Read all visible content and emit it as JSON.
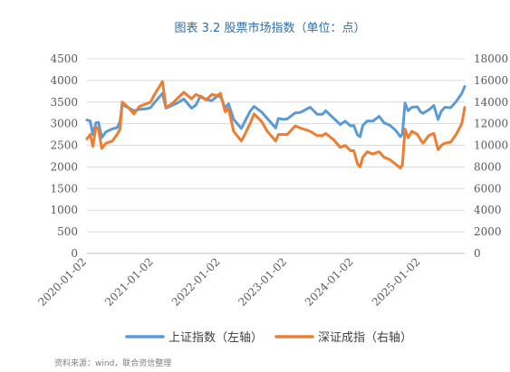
{
  "chart_data": {
    "type": "line",
    "title": "图表 3.2    股票市场指数（单位：点）",
    "x_tick_labels": [
      "2020-01-02",
      "2021-01-02",
      "2022-01-02",
      "2023-01-02",
      "2024-01-02",
      "2025-01-02"
    ],
    "x_range": [
      "2020-01-02",
      "2025-08-31"
    ],
    "left_axis": {
      "ticks": [
        "0",
        "500",
        "1000",
        "1500",
        "2000",
        "2500",
        "3000",
        "3500",
        "4000",
        "4500"
      ],
      "ylim": [
        0,
        4500
      ]
    },
    "right_axis": {
      "ticks": [
        "0",
        "2000",
        "4000",
        "6000",
        "8000",
        "10000",
        "12000",
        "14000",
        "16000",
        "18000"
      ],
      "ylim": [
        0,
        18000
      ]
    },
    "grid": true,
    "legend_position": "bottom",
    "series": [
      {
        "name": "上证指数（左轴）",
        "axis": "left",
        "color": "#5b9bd5",
        "points": [
          [
            "2020-01-02",
            3085
          ],
          [
            "2020-01-20",
            3060
          ],
          [
            "2020-02-03",
            2750
          ],
          [
            "2020-02-20",
            3020
          ],
          [
            "2020-03-05",
            3030
          ],
          [
            "2020-03-23",
            2680
          ],
          [
            "2020-04-15",
            2810
          ],
          [
            "2020-05-20",
            2880
          ],
          [
            "2020-06-15",
            2910
          ],
          [
            "2020-07-01",
            3050
          ],
          [
            "2020-07-13",
            3440
          ],
          [
            "2020-08-15",
            3370
          ],
          [
            "2020-09-15",
            3300
          ],
          [
            "2020-10-15",
            3330
          ],
          [
            "2020-11-15",
            3340
          ],
          [
            "2020-12-15",
            3370
          ],
          [
            "2021-01-02",
            3470
          ],
          [
            "2021-02-18",
            3700
          ],
          [
            "2021-03-10",
            3360
          ],
          [
            "2021-04-15",
            3430
          ],
          [
            "2021-05-15",
            3490
          ],
          [
            "2021-06-15",
            3570
          ],
          [
            "2021-07-28",
            3360
          ],
          [
            "2021-08-20",
            3430
          ],
          [
            "2021-09-15",
            3640
          ],
          [
            "2021-10-15",
            3560
          ],
          [
            "2021-11-15",
            3530
          ],
          [
            "2021-12-15",
            3640
          ],
          [
            "2022-01-02",
            3630
          ],
          [
            "2022-01-28",
            3360
          ],
          [
            "2022-02-15",
            3460
          ],
          [
            "2022-03-15",
            3100
          ],
          [
            "2022-04-26",
            2890
          ],
          [
            "2022-05-15",
            3050
          ],
          [
            "2022-06-15",
            3300
          ],
          [
            "2022-07-05",
            3400
          ],
          [
            "2022-08-15",
            3270
          ],
          [
            "2022-09-15",
            3120
          ],
          [
            "2022-10-31",
            2900
          ],
          [
            "2022-11-15",
            3120
          ],
          [
            "2022-12-15",
            3100
          ],
          [
            "2023-01-02",
            3110
          ],
          [
            "2023-02-15",
            3250
          ],
          [
            "2023-03-15",
            3260
          ],
          [
            "2023-05-08",
            3380
          ],
          [
            "2023-06-15",
            3220
          ],
          [
            "2023-07-15",
            3220
          ],
          [
            "2023-08-01",
            3300
          ],
          [
            "2023-09-15",
            3120
          ],
          [
            "2023-10-20",
            2980
          ],
          [
            "2023-11-15",
            3060
          ],
          [
            "2023-12-15",
            2950
          ],
          [
            "2024-01-02",
            2960
          ],
          [
            "2024-01-22",
            2740
          ],
          [
            "2024-02-05",
            2700
          ],
          [
            "2024-02-20",
            2960
          ],
          [
            "2024-03-15",
            3060
          ],
          [
            "2024-04-15",
            3060
          ],
          [
            "2024-05-20",
            3170
          ],
          [
            "2024-06-15",
            3020
          ],
          [
            "2024-07-15",
            2970
          ],
          [
            "2024-08-15",
            2860
          ],
          [
            "2024-09-13",
            2700
          ],
          [
            "2024-09-24",
            2760
          ],
          [
            "2024-10-08",
            3480
          ],
          [
            "2024-10-25",
            3300
          ],
          [
            "2024-11-15",
            3380
          ],
          [
            "2024-12-15",
            3390
          ],
          [
            "2025-01-02",
            3270
          ],
          [
            "2025-01-15",
            3240
          ],
          [
            "2025-02-15",
            3320
          ],
          [
            "2025-03-15",
            3420
          ],
          [
            "2025-04-07",
            3100
          ],
          [
            "2025-04-25",
            3290
          ],
          [
            "2025-05-15",
            3380
          ],
          [
            "2025-06-15",
            3370
          ],
          [
            "2025-07-15",
            3510
          ],
          [
            "2025-08-15",
            3700
          ],
          [
            "2025-08-31",
            3860
          ]
        ]
      },
      {
        "name": "深证成指（右轴）",
        "axis": "right",
        "color": "#ed7d31",
        "points": [
          [
            "2020-01-02",
            10600
          ],
          [
            "2020-01-20",
            11000
          ],
          [
            "2020-02-03",
            9900
          ],
          [
            "2020-02-20",
            11700
          ],
          [
            "2020-03-05",
            11500
          ],
          [
            "2020-03-23",
            9700
          ],
          [
            "2020-04-15",
            10200
          ],
          [
            "2020-05-20",
            10400
          ],
          [
            "2020-06-15",
            11000
          ],
          [
            "2020-07-01",
            11500
          ],
          [
            "2020-07-13",
            14000
          ],
          [
            "2020-08-15",
            13500
          ],
          [
            "2020-09-15",
            12900
          ],
          [
            "2020-10-15",
            13600
          ],
          [
            "2020-11-15",
            13800
          ],
          [
            "2020-12-15",
            14000
          ],
          [
            "2021-01-02",
            14600
          ],
          [
            "2021-02-18",
            15900
          ],
          [
            "2021-03-10",
            13500
          ],
          [
            "2021-04-15",
            13900
          ],
          [
            "2021-05-15",
            14400
          ],
          [
            "2021-06-15",
            14900
          ],
          [
            "2021-07-28",
            14300
          ],
          [
            "2021-08-20",
            14700
          ],
          [
            "2021-09-15",
            14500
          ],
          [
            "2021-10-15",
            14200
          ],
          [
            "2021-11-15",
            14700
          ],
          [
            "2021-12-15",
            14600
          ],
          [
            "2022-01-02",
            14800
          ],
          [
            "2022-01-28",
            13100
          ],
          [
            "2022-02-15",
            13400
          ],
          [
            "2022-03-15",
            11300
          ],
          [
            "2022-04-26",
            10400
          ],
          [
            "2022-05-15",
            11000
          ],
          [
            "2022-06-15",
            12100
          ],
          [
            "2022-07-05",
            12900
          ],
          [
            "2022-08-15",
            12200
          ],
          [
            "2022-09-15",
            11300
          ],
          [
            "2022-10-31",
            10400
          ],
          [
            "2022-11-15",
            11000
          ],
          [
            "2022-12-15",
            11000
          ],
          [
            "2023-01-02",
            11000
          ],
          [
            "2023-02-15",
            11800
          ],
          [
            "2023-03-15",
            11600
          ],
          [
            "2023-05-08",
            11300
          ],
          [
            "2023-06-15",
            10900
          ],
          [
            "2023-07-15",
            10900
          ],
          [
            "2023-08-01",
            11100
          ],
          [
            "2023-09-15",
            10500
          ],
          [
            "2023-10-20",
            9800
          ],
          [
            "2023-11-15",
            10000
          ],
          [
            "2023-12-15",
            9500
          ],
          [
            "2024-01-02",
            9500
          ],
          [
            "2024-01-22",
            8300
          ],
          [
            "2024-02-05",
            8000
          ],
          [
            "2024-02-20",
            8900
          ],
          [
            "2024-03-15",
            9400
          ],
          [
            "2024-04-15",
            9200
          ],
          [
            "2024-05-20",
            9400
          ],
          [
            "2024-06-15",
            8900
          ],
          [
            "2024-07-15",
            8700
          ],
          [
            "2024-08-15",
            8300
          ],
          [
            "2024-09-13",
            7900
          ],
          [
            "2024-09-24",
            8200
          ],
          [
            "2024-10-08",
            11500
          ],
          [
            "2024-10-25",
            10700
          ],
          [
            "2024-11-15",
            11300
          ],
          [
            "2024-12-15",
            11000
          ],
          [
            "2025-01-02",
            10500
          ],
          [
            "2025-01-15",
            10200
          ],
          [
            "2025-02-15",
            10900
          ],
          [
            "2025-03-15",
            11100
          ],
          [
            "2025-04-07",
            9600
          ],
          [
            "2025-04-25",
            10000
          ],
          [
            "2025-05-15",
            10200
          ],
          [
            "2025-06-15",
            10300
          ],
          [
            "2025-07-15",
            11000
          ],
          [
            "2025-08-15",
            12000
          ],
          [
            "2025-08-31",
            13500
          ]
        ]
      }
    ]
  },
  "source_note": "资料来源：wind，联合资信整理"
}
